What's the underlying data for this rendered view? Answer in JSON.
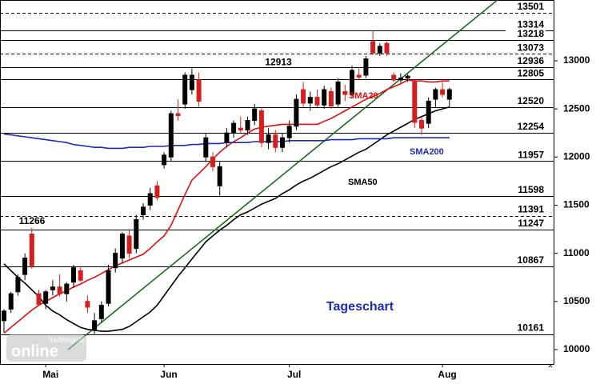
{
  "chart_data": {
    "type": "candlestick",
    "title": "Tageschart",
    "categories": [
      null,
      null,
      null,
      null,
      null,
      null,
      "Mai",
      null,
      null,
      null,
      null,
      null,
      null,
      null,
      null,
      null,
      null,
      null,
      null,
      null,
      null,
      null,
      null,
      "Jun",
      null,
      null,
      null,
      null,
      null,
      null,
      null,
      null,
      null,
      null,
      null,
      null,
      null,
      null,
      null,
      null,
      null,
      "Jul",
      null,
      null,
      null,
      null,
      null,
      null,
      null,
      null,
      null,
      null,
      null,
      null,
      null,
      null,
      null,
      null,
      null,
      null,
      null,
      null,
      null,
      "Aug",
      null
    ],
    "ohlc": [
      [
        10300,
        10420,
        10180,
        10400
      ],
      [
        10420,
        10600,
        10380,
        10580
      ],
      [
        10600,
        10780,
        10560,
        10750
      ],
      [
        10780,
        11000,
        10720,
        10950
      ],
      [
        11200,
        11266,
        10840,
        10870
      ],
      [
        10580,
        10620,
        10450,
        10470
      ],
      [
        10480,
        10620,
        10420,
        10600
      ],
      [
        10620,
        10720,
        10560,
        10650
      ],
      [
        10650,
        10780,
        10550,
        10580
      ],
      [
        10580,
        10700,
        10500,
        10680
      ],
      [
        10700,
        10880,
        10640,
        10850
      ],
      [
        10820,
        10860,
        10700,
        10720
      ],
      [
        10500,
        10560,
        10380,
        10440
      ],
      [
        10200,
        10380,
        10161,
        10300
      ],
      [
        10320,
        10500,
        10280,
        10460
      ],
      [
        10480,
        10880,
        10450,
        10820
      ],
      [
        10850,
        11050,
        10800,
        11000
      ],
      [
        10950,
        11220,
        10900,
        11200
      ],
      [
        11180,
        11250,
        10950,
        11000
      ],
      [
        11050,
        11400,
        11000,
        11350
      ],
      [
        11400,
        11520,
        11350,
        11480
      ],
      [
        11500,
        11680,
        11450,
        11620
      ],
      [
        11700,
        11750,
        11550,
        11580
      ],
      [
        11920,
        12050,
        11880,
        12020
      ],
      [
        12000,
        12480,
        11950,
        12450
      ],
      [
        12450,
        12600,
        12380,
        12430
      ],
      [
        12550,
        12880,
        12500,
        12850
      ],
      [
        12700,
        12920,
        12650,
        12850
      ],
      [
        12800,
        12880,
        12520,
        12580
      ],
      [
        12000,
        12250,
        11950,
        12200
      ],
      [
        12000,
        12050,
        11850,
        11900
      ],
      [
        11700,
        11950,
        11598,
        11900
      ],
      [
        12150,
        12300,
        12100,
        12250
      ],
      [
        12250,
        12380,
        12200,
        12350
      ],
      [
        12300,
        12420,
        12250,
        12280
      ],
      [
        12280,
        12420,
        12230,
        12380
      ],
      [
        12380,
        12550,
        12330,
        12500
      ],
      [
        12480,
        12520,
        12100,
        12150
      ],
      [
        12150,
        12300,
        12080,
        12230
      ],
      [
        12230,
        12280,
        12050,
        12100
      ],
      [
        12100,
        12250,
        12050,
        12200
      ],
      [
        12200,
        12380,
        12150,
        12320
      ],
      [
        12320,
        12650,
        12280,
        12600
      ],
      [
        12700,
        12780,
        12520,
        12560
      ],
      [
        12560,
        12680,
        12480,
        12620
      ],
      [
        12620,
        12700,
        12520,
        12540
      ],
      [
        12540,
        12740,
        12500,
        12700
      ],
      [
        12680,
        12720,
        12500,
        12530
      ],
      [
        12550,
        12820,
        12520,
        12780
      ],
      [
        12680,
        12750,
        12580,
        12650
      ],
      [
        12650,
        12950,
        12620,
        12900
      ],
      [
        12850,
        12920,
        12800,
        12830
      ],
      [
        12850,
        13050,
        12820,
        13020
      ],
      [
        13200,
        13314,
        13060,
        13080
      ],
      [
        13080,
        13180,
        13050,
        13150
      ],
      [
        13180,
        13200,
        13050,
        13080
      ],
      [
        12850,
        12880,
        12780,
        12800
      ],
      [
        12800,
        12870,
        12770,
        12820
      ],
      [
        12820,
        12860,
        12780,
        12840
      ],
      [
        12780,
        12800,
        12300,
        12360
      ],
      [
        12380,
        12420,
        12230,
        12300
      ],
      [
        12350,
        12620,
        12300,
        12580
      ],
      [
        12600,
        12720,
        12520,
        12700
      ],
      [
        12700,
        12780,
        12620,
        12650
      ],
      [
        12600,
        12720,
        12520,
        12700
      ]
    ],
    "up_color": "#000000",
    "down_color": "#d41f1f",
    "lines": [
      {
        "name": "SMA20",
        "color": "#e01010",
        "values": [
          10170,
          10230,
          10290,
          10350,
          10410,
          10460,
          10500,
          10540,
          10580,
          10610,
          10650,
          10680,
          10720,
          10750,
          10790,
          10830,
          10870,
          10900,
          10930,
          10960,
          10990,
          11050,
          11120,
          11180,
          11290,
          11450,
          11610,
          11760,
          11830,
          11900,
          11980,
          12050,
          12110,
          12160,
          12200,
          12250,
          12290,
          12310,
          12320,
          12330,
          12340,
          12340,
          12340,
          12340,
          12340,
          12340,
          12370,
          12400,
          12440,
          12480,
          12520,
          12560,
          12600,
          12630,
          12660,
          12700,
          12730,
          12760,
          12800,
          12790,
          12790,
          12780,
          12780,
          12790,
          12790
        ]
      },
      {
        "name": "SMA50",
        "color": "#000000",
        "values": [
          10890,
          10820,
          10750,
          10690,
          10620,
          10550,
          10460,
          10400,
          10360,
          10310,
          10270,
          10230,
          10210,
          10200,
          10190,
          10190,
          10200,
          10210,
          10240,
          10290,
          10340,
          10390,
          10460,
          10560,
          10660,
          10760,
          10850,
          10940,
          11030,
          11120,
          11180,
          11240,
          11290,
          11350,
          11400,
          11430,
          11470,
          11510,
          11540,
          11570,
          11620,
          11660,
          11710,
          11750,
          11780,
          11820,
          11860,
          11900,
          11930,
          11970,
          12010,
          12050,
          12080,
          12130,
          12180,
          12230,
          12270,
          12310,
          12350,
          12390,
          12420,
          12450,
          12480,
          12500,
          12520
        ]
      },
      {
        "name": "SMA200",
        "color": "#1c2bb8",
        "values": [
          12240,
          12230,
          12220,
          12210,
          12200,
          12190,
          12180,
          12170,
          12160,
          12150,
          12130,
          12120,
          12110,
          12100,
          12100,
          12090,
          12090,
          12090,
          12100,
          12100,
          12100,
          12110,
          12110,
          12110,
          12120,
          12120,
          12120,
          12130,
          12130,
          12140,
          12140,
          12140,
          12150,
          12150,
          12150,
          12150,
          12160,
          12160,
          12160,
          12160,
          12160,
          12170,
          12170,
          12170,
          12170,
          12170,
          12170,
          12180,
          12180,
          12180,
          12180,
          12190,
          12190,
          12190,
          12190,
          12190,
          12200,
          12200,
          12200,
          12200,
          12200,
          12200,
          12200,
          12200,
          12200
        ]
      }
    ],
    "levels": [
      {
        "value": 13501,
        "dashed": true
      },
      {
        "value": 13314,
        "dashed": false
      },
      {
        "value": 13218,
        "dashed": false
      },
      {
        "value": 13073,
        "dashed": true
      },
      {
        "value": 12936,
        "dashed": false
      },
      {
        "value": 12805,
        "dashed": false
      },
      {
        "value": 12520,
        "dashed": false
      },
      {
        "value": 12254,
        "dashed": false
      },
      {
        "value": 11957,
        "dashed": false
      },
      {
        "value": 11598,
        "dashed": false
      },
      {
        "value": 11391,
        "dashed": true
      },
      {
        "value": 11247,
        "dashed": false
      },
      {
        "value": 10867,
        "dashed": false
      },
      {
        "value": 10161,
        "dashed": false
      }
    ],
    "peak_labels": [
      12913,
      11266
    ],
    "trendline": {
      "x": [
        9.2,
        70.9
      ],
      "values": [
        10000,
        13631
      ],
      "color": "#1d6b1d"
    },
    "ylim": [
      9850,
      13631
    ],
    "yticks": [
      10000,
      10500,
      11000,
      11500,
      12000,
      12500,
      13000
    ],
    "watermark": [
      "tradesignal",
      "online"
    ]
  }
}
